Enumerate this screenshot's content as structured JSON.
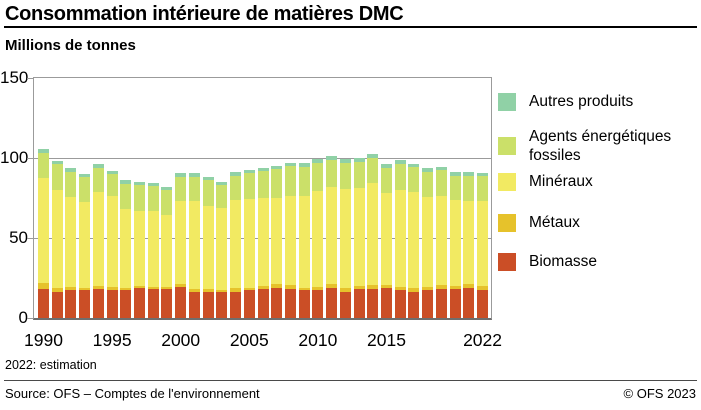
{
  "header": {
    "title": "Consommation intérieure de matières DMC",
    "unit_label": "Millions de tonnes"
  },
  "footnote": "2022: estimation",
  "footer": {
    "source": "Source: OFS – Comptes de l'environnement",
    "copyright": "© OFS 2023"
  },
  "colors": {
    "autres_produits": "#90d1a6",
    "agents_energetiques_fossiles": "#cbe069",
    "mineraux": "#f2ea62",
    "metaux": "#e6c22b",
    "biomasse": "#cb4e26",
    "gridline": "#9b9b9b",
    "axis_bottom": "#6e6e6e"
  },
  "legend": [
    {
      "key": "autres",
      "label": "Autres produits",
      "color": "#90d1a6"
    },
    {
      "key": "fossiles",
      "label": "Agents énergétiques fossiles",
      "color": "#cbe069"
    },
    {
      "key": "mineraux",
      "label": "Minéraux",
      "color": "#f2ea62"
    },
    {
      "key": "metaux",
      "label": "Métaux",
      "color": "#e6c22b"
    },
    {
      "key": "biomasse",
      "label": "Biomasse",
      "color": "#cb4e26"
    }
  ],
  "chart_data": {
    "type": "bar",
    "stacked": true,
    "title": "Consommation intérieure de matières DMC",
    "ylabel": "Millions de tonnes",
    "ylim": [
      0,
      150
    ],
    "yticks": [
      0,
      50,
      100,
      150
    ],
    "grid": "horizontal",
    "legend_position": "right",
    "xticks_shown": [
      "1990",
      "1995",
      "2000",
      "2005",
      "2010",
      "2015",
      "2022"
    ],
    "categories": [
      1990,
      1991,
      1992,
      1993,
      1994,
      1995,
      1996,
      1997,
      1998,
      1999,
      2000,
      2001,
      2002,
      2003,
      2004,
      2005,
      2006,
      2007,
      2008,
      2009,
      2010,
      2011,
      2012,
      2013,
      2014,
      2015,
      2016,
      2017,
      2018,
      2019,
      2020,
      2021,
      2022
    ],
    "series": [
      {
        "key": "biomasse",
        "name": "Biomasse",
        "color": "#cb4e26",
        "values": [
          18,
          16.5,
          17.5,
          17.5,
          18,
          17.5,
          17.5,
          18.5,
          18,
          18,
          19.5,
          16.5,
          16.5,
          16,
          16.5,
          17.5,
          18,
          19,
          18,
          17.5,
          17.5,
          18.5,
          16.5,
          18,
          18,
          18.5,
          17.5,
          16.5,
          17.5,
          18,
          18,
          18.5,
          17.5
        ]
      },
      {
        "key": "metaux",
        "name": "Métaux",
        "color": "#e6c22b",
        "values": [
          4,
          2,
          2,
          1.5,
          2,
          2,
          1.5,
          1.5,
          1.5,
          1.5,
          2,
          1.5,
          1.5,
          1.5,
          2,
          1.5,
          2,
          2,
          2.5,
          1.5,
          2,
          2.5,
          2,
          2,
          2.5,
          2,
          2,
          2,
          2,
          2.5,
          2,
          2.5,
          2.5
        ]
      },
      {
        "key": "mineraux",
        "name": "Minéraux",
        "color": "#f2ea62",
        "values": [
          65.5,
          61.5,
          56,
          53.5,
          58.5,
          56.5,
          49,
          47,
          47.5,
          45,
          51.5,
          55,
          52,
          51,
          55.5,
          55.5,
          55,
          54,
          56,
          57,
          60,
          61,
          62,
          61,
          64,
          57.5,
          60.5,
          60,
          56,
          56,
          54,
          52,
          53
        ]
      },
      {
        "key": "fossiles",
        "name": "Agents énergétiques fossiles",
        "color": "#cbe069",
        "values": [
          15.5,
          16,
          16,
          15.5,
          15.5,
          14,
          16,
          16,
          15.5,
          15.5,
          15,
          15,
          16,
          14.5,
          15,
          16,
          17,
          18,
          18.5,
          18.5,
          17.5,
          16.5,
          16.5,
          16.5,
          15.5,
          15.5,
          16,
          16,
          16,
          16,
          15,
          16,
          15.5
        ]
      },
      {
        "key": "autres",
        "name": "Autres produits",
        "color": "#90d1a6",
        "values": [
          2.5,
          2,
          2,
          2,
          2.5,
          2,
          2,
          2,
          2,
          2,
          2.5,
          2.5,
          2,
          2,
          2.5,
          2,
          2,
          2,
          2,
          2.5,
          2.5,
          3,
          2.5,
          2.5,
          2.5,
          3,
          2.5,
          2,
          2,
          2,
          2,
          2,
          2
        ]
      }
    ],
    "totals_note": "1990: 105.5 Mt; minimum 1999: 82 Mt; maximum 2014: 102.5 Mt; 2022: 90.5 Mt"
  }
}
